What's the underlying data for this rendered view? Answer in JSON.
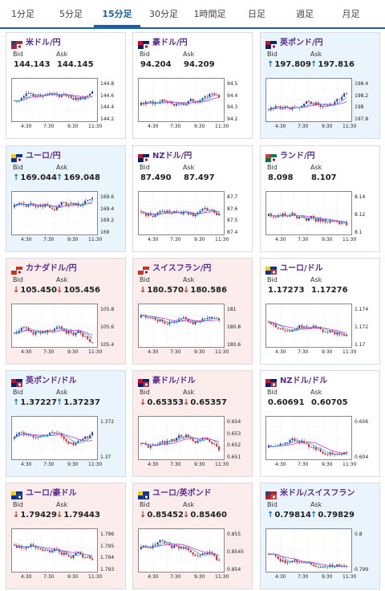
{
  "tabs": [
    {
      "label": "1分足",
      "active": false
    },
    {
      "label": "5分足",
      "active": false
    },
    {
      "label": "15分足",
      "active": true
    },
    {
      "label": "30分足",
      "active": false
    },
    {
      "label": "1時間足",
      "active": false
    },
    {
      "label": "日足",
      "active": false
    },
    {
      "label": "週足",
      "active": false
    },
    {
      "label": "月足",
      "active": false
    }
  ],
  "labels": {
    "bid": "Bid",
    "ask": "Ask"
  },
  "colors": {
    "up_bg": "#eaf4fc",
    "down_bg": "#fcecec",
    "title": "#5a2d91",
    "accent": "#1a5fa8",
    "bull": "#1a3fb0",
    "bear": "#e02222",
    "ma1": "#cc33cc",
    "ma2": "#33aacc"
  },
  "cards": [
    {
      "name": "米ドル/円",
      "flag": "us-jp",
      "dir": "flat",
      "bid": "144.143",
      "ask": "144.145",
      "bid_arrow": "",
      "ask_arrow": "",
      "y_ticks": [
        "144.8",
        "144.6",
        "144.4",
        "144.2"
      ],
      "x_ticks": [
        "4:30",
        "7:30",
        "9:30",
        "11:30"
      ]
    },
    {
      "name": "豪ドル/円",
      "flag": "au-jp",
      "dir": "flat",
      "bid": "94.204",
      "ask": "94.209",
      "bid_arrow": "",
      "ask_arrow": "",
      "y_ticks": [
        "94.5",
        "94.4",
        "94.3",
        "94.2"
      ],
      "x_ticks": [
        "4:30",
        "7:30",
        "9:30",
        "11:30"
      ]
    },
    {
      "name": "英ポンド/円",
      "flag": "gb-jp",
      "dir": "up",
      "bid": "197.809",
      "ask": "197.816",
      "bid_arrow": "↑",
      "ask_arrow": "↑",
      "y_ticks": [
        "198.4",
        "198.2",
        "198",
        "197.8"
      ],
      "x_ticks": [
        "4:30",
        "7:30",
        "9:30",
        "11:30"
      ]
    },
    {
      "name": "ユーロ/円",
      "flag": "eu-jp",
      "dir": "up",
      "bid": "169.044",
      "ask": "169.048",
      "bid_arrow": "↑",
      "ask_arrow": "↑",
      "y_ticks": [
        "169.6",
        "169.4",
        "169.2",
        "169"
      ],
      "x_ticks": [
        "4:30",
        "7:30",
        "9:30",
        "11:30"
      ]
    },
    {
      "name": "NZドル/円",
      "flag": "nz-jp",
      "dir": "flat",
      "bid": "87.490",
      "ask": "87.497",
      "bid_arrow": "",
      "ask_arrow": "",
      "y_ticks": [
        "87.7",
        "87.6",
        "87.5",
        "87.4"
      ],
      "x_ticks": [
        "4:30",
        "7:30",
        "9:30",
        "11:30"
      ]
    },
    {
      "name": "ランド/円",
      "flag": "za-jp",
      "dir": "flat",
      "bid": "8.098",
      "ask": "8.107",
      "bid_arrow": "",
      "ask_arrow": "",
      "y_ticks": [
        "8.14",
        "8.12",
        "8.1"
      ],
      "x_ticks": [
        "4:30",
        "7:30",
        "9:30",
        "11:30"
      ]
    },
    {
      "name": "カナダドル/円",
      "flag": "ca-jp",
      "dir": "down",
      "bid": "105.450",
      "ask": "105.456",
      "bid_arrow": "↓",
      "ask_arrow": "↓",
      "y_ticks": [
        "105.8",
        "105.6",
        "105.4"
      ],
      "x_ticks": [
        "4:30",
        "7:30",
        "9:30",
        "11:30"
      ]
    },
    {
      "name": "スイスフラン/円",
      "flag": "ch-jp",
      "dir": "down",
      "bid": "180.570",
      "ask": "180.586",
      "bid_arrow": "↓",
      "ask_arrow": "↓",
      "y_ticks": [
        "181",
        "180.8",
        "180.6"
      ],
      "x_ticks": [
        "4:30",
        "7:30",
        "9:30",
        "11:30"
      ]
    },
    {
      "name": "ユーロ/ドル",
      "flag": "eu-us",
      "dir": "flat",
      "bid": "1.17273",
      "ask": "1.17276",
      "bid_arrow": "",
      "ask_arrow": "",
      "y_ticks": [
        "1.174",
        "1.172",
        "1.17"
      ],
      "x_ticks": [
        "4:30",
        "7:30",
        "9:30",
        "11:30"
      ]
    },
    {
      "name": "英ポンド/ドル",
      "flag": "gb-us",
      "dir": "up",
      "bid": "1.37227",
      "ask": "1.37237",
      "bid_arrow": "↑",
      "ask_arrow": "↑",
      "y_ticks": [
        "1.372",
        "1.37"
      ],
      "x_ticks": [
        "4:30",
        "7:30",
        "9:30",
        "11:30"
      ]
    },
    {
      "name": "豪ドル/ドル",
      "flag": "au-us",
      "dir": "down",
      "bid": "0.65353",
      "ask": "0.65357",
      "bid_arrow": "↓",
      "ask_arrow": "↓",
      "y_ticks": [
        "0.654",
        "0.653",
        "0.652",
        "0.651"
      ],
      "x_ticks": [
        "4:30",
        "7:30",
        "9:30",
        "11:30"
      ]
    },
    {
      "name": "NZドル/ドル",
      "flag": "nz-us",
      "dir": "flat",
      "bid": "0.60691",
      "ask": "0.60705",
      "bid_arrow": "",
      "ask_arrow": "",
      "y_ticks": [
        "0.606",
        "0.604"
      ],
      "x_ticks": [
        "4:30",
        "7:30",
        "9:30",
        "11:30"
      ]
    },
    {
      "name": "ユーロ/豪ドル",
      "flag": "eu-au",
      "dir": "down",
      "bid": "1.79429",
      "ask": "1.79443",
      "bid_arrow": "↓",
      "ask_arrow": "↓",
      "y_ticks": [
        "1.796",
        "1.795",
        "1.794",
        "1.793"
      ],
      "x_ticks": [
        "4:30",
        "7:30",
        "9:30",
        "11:30"
      ]
    },
    {
      "name": "ユーロ/英ポンド",
      "flag": "eu-gb",
      "dir": "down",
      "bid": "0.85452",
      "ask": "0.85460",
      "bid_arrow": "↓",
      "ask_arrow": "↓",
      "y_ticks": [
        "0.855",
        "0.8545",
        "0.854"
      ],
      "x_ticks": [
        "4:30",
        "7:30",
        "9:30",
        "11:30"
      ]
    },
    {
      "name": "米ドル/スイスフラン",
      "flag": "us-ch",
      "dir": "up",
      "bid": "0.79814",
      "ask": "0.79829",
      "bid_arrow": "↑",
      "ask_arrow": "↑",
      "y_ticks": [
        "0.8",
        "0.799"
      ],
      "x_ticks": [
        "4:30",
        "7:30",
        "9:30",
        "11:30"
      ]
    }
  ]
}
